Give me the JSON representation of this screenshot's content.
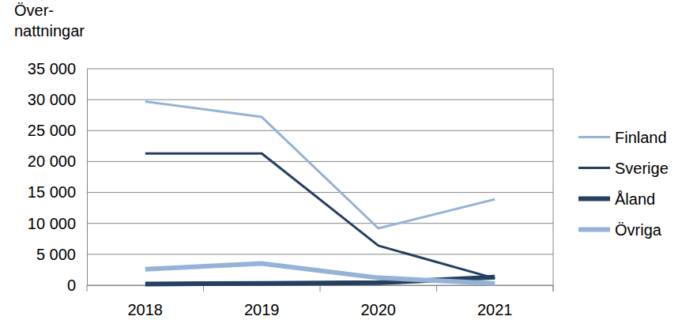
{
  "chart_data": {
    "type": "line",
    "y_label": "Över-\nnattningar",
    "categories": [
      "2018",
      "2019",
      "2020",
      "2021"
    ],
    "series": [
      {
        "name": "Finland",
        "color": "#95b3d7",
        "values": [
          29700,
          27200,
          9200,
          13900
        ]
      },
      {
        "name": "Sverige",
        "color": "#243f60",
        "values": [
          21300,
          21300,
          6400,
          1100
        ]
      },
      {
        "name": "Åland",
        "color": "#243f60",
        "values": [
          200,
          300,
          400,
          1300
        ]
      },
      {
        "name": "Övriga",
        "color": "#95b3d7",
        "values": [
          2600,
          3500,
          1200,
          300
        ]
      }
    ],
    "ylim": [
      0,
      35000
    ],
    "yticks": [
      0,
      {
        "value": 5000,
        "label": "5 000"
      },
      {
        "value": 10000,
        "label": "10 000"
      },
      {
        "value": 15000,
        "label": "15 000"
      },
      {
        "value": 20000,
        "label": "20 000"
      },
      {
        "value": 25000,
        "label": "25 000"
      },
      {
        "value": 30000,
        "label": "30 000"
      },
      {
        "value": 35000,
        "label": "35 000"
      }
    ],
    "grid": true,
    "legend": "right"
  }
}
